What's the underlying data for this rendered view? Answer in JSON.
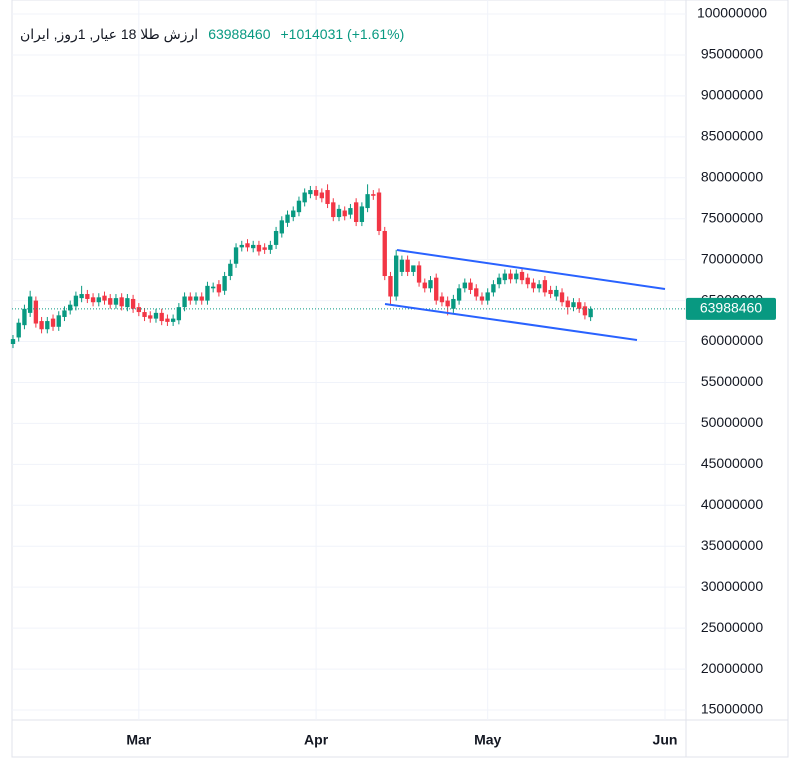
{
  "chart_data": {
    "type": "candlestick",
    "title": "ارزش طلا 18 عیار, 1روز, ایران",
    "change_label": "+1014031 (+1.61%)",
    "colors": {
      "up": "#089981",
      "down": "#f23645"
    },
    "grid": true,
    "last_price_line": true,
    "categories": [
      null,
      null,
      null,
      null,
      null,
      null,
      null,
      null,
      null,
      null,
      null,
      null,
      null,
      null,
      null,
      null,
      null,
      null,
      null,
      null,
      null,
      null,
      "Mar",
      null,
      null,
      null,
      null,
      null,
      null,
      null,
      null,
      null,
      null,
      null,
      null,
      null,
      null,
      null,
      null,
      null,
      null,
      null,
      null,
      null,
      null,
      null,
      null,
      null,
      null,
      null,
      null,
      null,
      null,
      "Apr",
      null,
      null,
      null,
      null,
      null,
      null,
      null,
      null,
      null,
      null,
      null,
      null,
      null,
      null,
      null,
      null,
      null,
      null,
      null,
      null,
      null,
      null,
      null,
      null,
      null,
      null,
      null,
      null,
      null,
      "May",
      null,
      null,
      null,
      null,
      null,
      null,
      null,
      null,
      null,
      null,
      null,
      null,
      null,
      null,
      null,
      null,
      null,
      null,
      null,
      null,
      null,
      null,
      null,
      null,
      null,
      null,
      null,
      null,
      null,
      null,
      "Jun",
      null,
      null,
      null
    ],
    "open": [
      59700000,
      60500000,
      62000000,
      63500000,
      65000000,
      62500000,
      61500000,
      62800000,
      61800000,
      63000000,
      63800000,
      64300000,
      65300000,
      65800000,
      65400000,
      64800000,
      65600000,
      65300000,
      64500000,
      65400000,
      64200000,
      65200000,
      64200000,
      63600000,
      63200000,
      62800000,
      63500000,
      62800000,
      62400000,
      62600000,
      64200000,
      65500000,
      65000000,
      65500000,
      65000000,
      66500000,
      67000000,
      66200000,
      68000000,
      69500000,
      71500000,
      72000000,
      71400000,
      71800000,
      71500000,
      71200000,
      71800000,
      73200000,
      74500000,
      75200000,
      75800000,
      77000000,
      78000000,
      78500000,
      78200000,
      78500000,
      77000000,
      75200000,
      76000000,
      75500000,
      77000000,
      74600000,
      76300000,
      78000000,
      78200000,
      73500000,
      68000000,
      65500000,
      68500000,
      70000000,
      68500000,
      69300000,
      67200000,
      66500000,
      67800000,
      65500000,
      65000000,
      64000000,
      65000000,
      66500000,
      67200000,
      66500000,
      65500000,
      65000000,
      66000000,
      67000000,
      67500000,
      68300000,
      67600000,
      68500000,
      67800000,
      67200000,
      66500000,
      67500000,
      66300000,
      65500000,
      66000000,
      65000000,
      64200000,
      64800000,
      64300000,
      62974429,
      null,
      null,
      null,
      null,
      null,
      null,
      null,
      null,
      null,
      null,
      null,
      null,
      null,
      null,
      null,
      null
    ],
    "high": [
      60800000,
      62800000,
      64500000,
      66200000,
      65500000,
      63000000,
      63000000,
      63300000,
      63700000,
      64300000,
      65000000,
      66100000,
      66800000,
      66300000,
      65900000,
      65900000,
      66100000,
      65800000,
      65800000,
      65900000,
      65800000,
      65700000,
      64700000,
      64100000,
      63700000,
      64000000,
      64000000,
      63300000,
      63300000,
      64700000,
      66000000,
      66000000,
      66000000,
      66000000,
      67300000,
      67200000,
      67500000,
      68500000,
      70000000,
      72000000,
      72300000,
      72500000,
      72300000,
      72300000,
      72000000,
      72300000,
      74000000,
      75300000,
      76000000,
      76500000,
      77700000,
      78700000,
      79000000,
      79000000,
      78700000,
      79200000,
      77500000,
      76700000,
      76500000,
      76800000,
      77500000,
      77000000,
      79200000,
      78500000,
      78700000,
      74000000,
      68500000,
      71200000,
      70500000,
      70500000,
      69000000,
      69800000,
      67700000,
      68000000,
      68300000,
      66000000,
      65500000,
      65700000,
      67000000,
      67700000,
      67700000,
      67000000,
      66000000,
      66500000,
      67500000,
      68300000,
      68800000,
      68800000,
      68800000,
      69000000,
      68300000,
      67700000,
      67500000,
      68000000,
      66800000,
      66800000,
      66500000,
      65500000,
      65300000,
      65300000,
      64800000,
      64300000,
      null,
      null,
      null,
      null,
      null,
      null,
      null,
      null,
      null,
      null,
      null,
      null,
      null,
      null,
      null,
      null
    ],
    "low": [
      59200000,
      60000000,
      61500000,
      63000000,
      61700000,
      61000000,
      61000000,
      61300000,
      61300000,
      62500000,
      63300000,
      63800000,
      64800000,
      64700000,
      64300000,
      64300000,
      64500000,
      64000000,
      64000000,
      63800000,
      63700000,
      63500000,
      63100000,
      62500000,
      62300000,
      62300000,
      62000000,
      61900000,
      61900000,
      62100000,
      63700000,
      64500000,
      64500000,
      64500000,
      64500000,
      66000000,
      65500000,
      65700000,
      67500000,
      69000000,
      71000000,
      71000000,
      70900000,
      70500000,
      70700000,
      70700000,
      71300000,
      72700000,
      74000000,
      74700000,
      75300000,
      76500000,
      77500000,
      77300000,
      77000000,
      76300000,
      74700000,
      74700000,
      74800000,
      75000000,
      74100000,
      74100000,
      75800000,
      77300000,
      73000000,
      67500000,
      64500000,
      65000000,
      68000000,
      68000000,
      68000000,
      66700000,
      66000000,
      66000000,
      64500000,
      64300000,
      63200000,
      63500000,
      64500000,
      66000000,
      65800000,
      65000000,
      64500000,
      64500000,
      65500000,
      66500000,
      67000000,
      67100000,
      67100000,
      67000000,
      66500000,
      66000000,
      66000000,
      65500000,
      65300000,
      65000000,
      64300000,
      63300000,
      63700000,
      63500000,
      62700000,
      62500000,
      null,
      null,
      null,
      null,
      null,
      null,
      null,
      null,
      null,
      null,
      null,
      null,
      null,
      null,
      null,
      null
    ],
    "close": [
      60300000,
      62300000,
      64000000,
      65500000,
      62200000,
      61500000,
      62500000,
      61800000,
      63200000,
      63800000,
      64500000,
      65600000,
      65800000,
      65200000,
      64800000,
      65400000,
      65000000,
      64500000,
      65300000,
      64300000,
      65300000,
      64000000,
      63600000,
      63000000,
      62800000,
      63500000,
      62500000,
      62400000,
      62800000,
      64200000,
      65500000,
      65000000,
      65500000,
      65000000,
      66800000,
      66700000,
      66000000,
      68000000,
      69500000,
      71500000,
      71800000,
      71500000,
      71800000,
      71000000,
      71200000,
      71800000,
      73500000,
      74800000,
      75500000,
      76000000,
      77200000,
      78200000,
      78500000,
      77800000,
      77500000,
      76800000,
      75200000,
      76200000,
      75300000,
      76300000,
      74600000,
      76500000,
      78000000,
      77800000,
      73500000,
      68000000,
      65500000,
      70500000,
      70000000,
      68500000,
      69300000,
      67200000,
      66500000,
      67500000,
      65000000,
      64800000,
      64300000,
      65200000,
      66500000,
      67200000,
      66300000,
      65500000,
      65000000,
      66000000,
      67000000,
      67800000,
      68300000,
      67600000,
      68300000,
      67500000,
      67000000,
      66500000,
      67000000,
      66000000,
      65800000,
      66300000,
      64800000,
      64200000,
      64800000,
      64000000,
      63200000,
      63988460,
      null,
      null,
      null,
      null,
      null,
      null,
      null,
      null,
      null,
      null,
      null,
      null,
      null,
      null,
      null,
      null
    ],
    "ylim": [
      13780000,
      101710000
    ],
    "yticks": [
      15000000,
      20000000,
      25000000,
      30000000,
      35000000,
      40000000,
      45000000,
      50000000,
      55000000,
      60000000,
      65000000,
      70000000,
      75000000,
      80000000,
      85000000,
      90000000,
      95000000,
      100000000
    ]
  }
}
